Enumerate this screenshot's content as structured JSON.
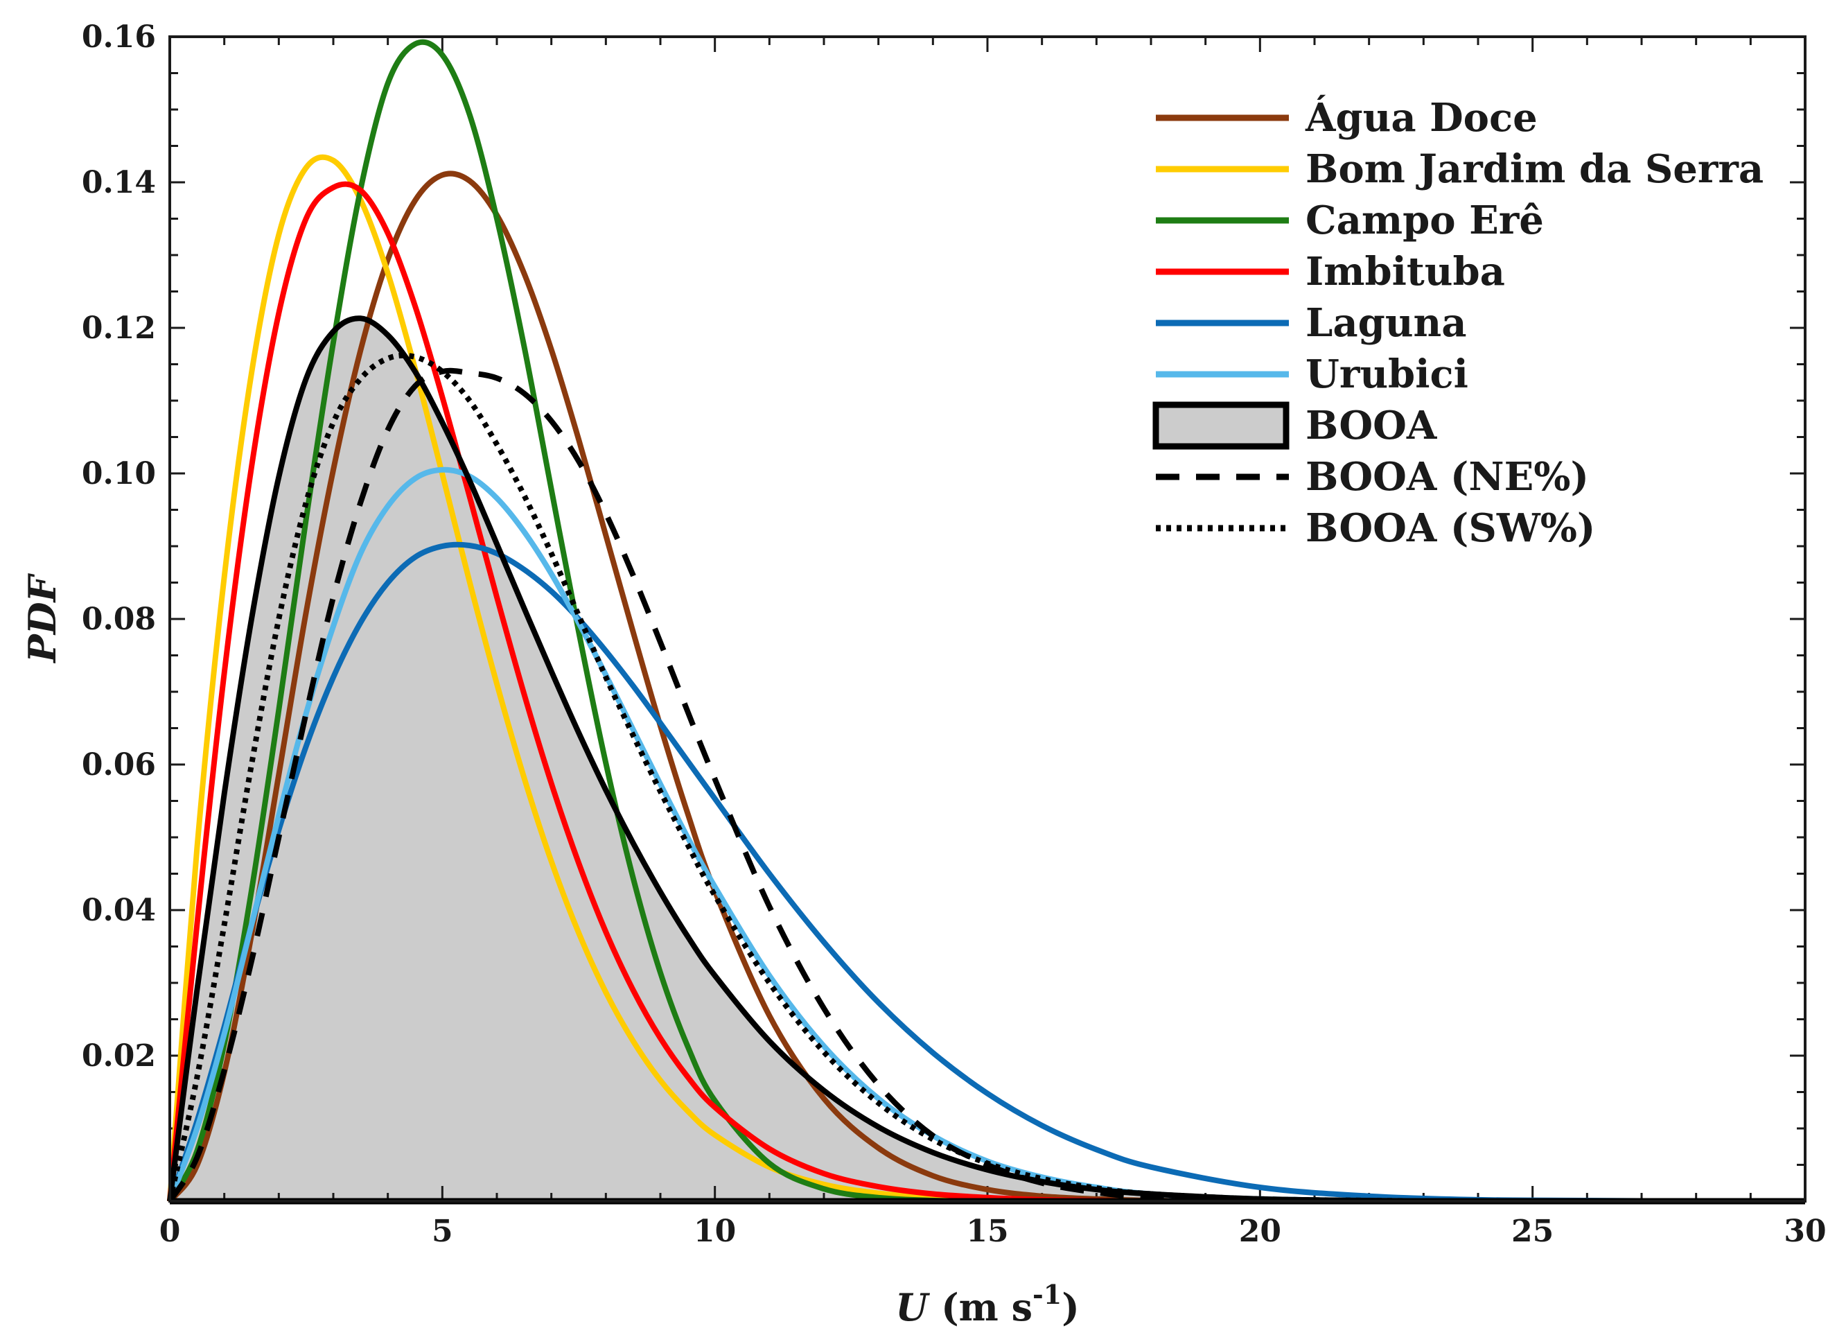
{
  "chart_data": {
    "type": "line",
    "title": "",
    "xlabel": {
      "symbol": "U",
      "unit_prefix": " (m s",
      "unit_exp": "-1",
      "unit_suffix": ")"
    },
    "ylabel": "PDF",
    "xlim": [
      0,
      30
    ],
    "ylim": [
      0,
      0.16
    ],
    "x_ticks": [
      0,
      5,
      10,
      15,
      20,
      25,
      30
    ],
    "x_tick_labels": [
      "0",
      "5",
      "10",
      "15",
      "20",
      "25",
      "30"
    ],
    "y_ticks": [
      0.02,
      0.04,
      0.06,
      0.08,
      0.1,
      0.12,
      0.14,
      0.16
    ],
    "y_tick_labels": [
      "0.02",
      "0.04",
      "0.06",
      "0.08",
      "0.10",
      "0.12",
      "0.14",
      "0.16"
    ],
    "grid": false,
    "legend_position": "top-right",
    "x": [
      0,
      0.5,
      1,
      1.5,
      2,
      2.5,
      3,
      3.5,
      4,
      4.5,
      5,
      5.5,
      6,
      6.5,
      7,
      7.5,
      8,
      8.5,
      9,
      9.5,
      10,
      11,
      12,
      13,
      14,
      15,
      16,
      17,
      18,
      20,
      22,
      24,
      26,
      28,
      30
    ],
    "series": [
      {
        "name": "Água Doce",
        "color": "#8b3a0e",
        "style": "solid",
        "values": [
          0,
          0.0049,
          0.0177,
          0.0366,
          0.0586,
          0.0809,
          0.1005,
          0.1169,
          0.1294,
          0.1375,
          0.141,
          0.1402,
          0.1355,
          0.1275,
          0.117,
          0.1047,
          0.0915,
          0.0782,
          0.0653,
          0.0533,
          0.0426,
          0.0255,
          0.0141,
          0.0073,
          0.0035,
          0.0016,
          0.0007,
          0.0003,
          0.0001,
          0,
          0,
          0,
          0,
          0,
          0
        ]
      },
      {
        "name": "Bom Jardim da Serra",
        "color": "#ffcc00",
        "style": "solid",
        "values": [
          0,
          0.0485,
          0.0858,
          0.1138,
          0.1328,
          0.142,
          0.143,
          0.1376,
          0.1275,
          0.1144,
          0.0999,
          0.0851,
          0.0711,
          0.0582,
          0.0467,
          0.0369,
          0.0287,
          0.022,
          0.0166,
          0.0124,
          0.0091,
          0.0047,
          0.0023,
          0.0011,
          0.0005,
          0.0002,
          0.0001,
          0,
          0,
          0,
          0,
          0,
          0,
          0,
          0
        ]
      },
      {
        "name": "Campo Erê",
        "color": "#1e7d14",
        "style": "solid",
        "values": [
          0,
          0.0069,
          0.0216,
          0.0427,
          0.0675,
          0.0937,
          0.118,
          0.139,
          0.1536,
          0.159,
          0.1575,
          0.1493,
          0.135,
          0.1175,
          0.0978,
          0.0783,
          0.0602,
          0.0444,
          0.0314,
          0.0213,
          0.0138,
          0.0052,
          0.0017,
          0.0005,
          0.0001,
          0,
          0,
          0,
          0,
          0,
          0,
          0,
          0,
          0,
          0
        ]
      },
      {
        "name": "Imbituba",
        "color": "#ff0000",
        "style": "solid",
        "values": [
          0,
          0.038,
          0.0726,
          0.1009,
          0.122,
          0.135,
          0.1393,
          0.1389,
          0.133,
          0.123,
          0.1105,
          0.0968,
          0.083,
          0.0697,
          0.0574,
          0.0465,
          0.037,
          0.029,
          0.0224,
          0.0171,
          0.0129,
          0.0072,
          0.0038,
          0.002,
          0.001,
          0.0005,
          0.0002,
          0.0001,
          0,
          0,
          0,
          0,
          0,
          0,
          0
        ]
      },
      {
        "name": "Laguna",
        "color": "#0c6bb5",
        "style": "solid",
        "values": [
          0,
          0.011,
          0.024,
          0.038,
          0.051,
          0.0625,
          0.072,
          0.0795,
          0.085,
          0.0885,
          0.09,
          0.0901,
          0.089,
          0.0868,
          0.0838,
          0.08,
          0.0756,
          0.0708,
          0.0657,
          0.0605,
          0.0553,
          0.045,
          0.0356,
          0.0273,
          0.0204,
          0.0148,
          0.0104,
          0.0071,
          0.0047,
          0.0019,
          0.0007,
          0.0002,
          0.0001,
          0,
          0
        ]
      },
      {
        "name": "Urubici",
        "color": "#56b8ea",
        "style": "solid",
        "values": [
          0,
          0.01,
          0.023,
          0.038,
          0.053,
          0.067,
          0.079,
          0.089,
          0.0955,
          0.0993,
          0.1005,
          0.0996,
          0.0966,
          0.092,
          0.0862,
          0.0795,
          0.0723,
          0.0648,
          0.0573,
          0.05,
          0.0432,
          0.031,
          0.0213,
          0.0141,
          0.009,
          0.0055,
          0.0033,
          0.0019,
          0.001,
          0.0003,
          0.0001,
          0,
          0,
          0,
          0
        ]
      },
      {
        "name": "BOOA",
        "color": "#000000",
        "style": "filled",
        "fill": "#cccccc",
        "values": [
          0,
          0.029,
          0.056,
          0.08,
          0.0995,
          0.113,
          0.1195,
          0.1213,
          0.119,
          0.114,
          0.107,
          0.099,
          0.0903,
          0.0815,
          0.0728,
          0.0644,
          0.0565,
          0.0492,
          0.0425,
          0.0364,
          0.031,
          0.022,
          0.0152,
          0.0102,
          0.0067,
          0.0043,
          0.0027,
          0.0016,
          0.001,
          0.0003,
          0.0001,
          0,
          0,
          0,
          0
        ]
      },
      {
        "name": "BOOA (NE%)",
        "color": "#000000",
        "style": "dashed",
        "values": [
          0,
          0.006,
          0.018,
          0.033,
          0.05,
          0.067,
          0.083,
          0.096,
          0.106,
          0.112,
          0.114,
          0.1138,
          0.1131,
          0.111,
          0.1072,
          0.1017,
          0.0945,
          0.086,
          0.0768,
          0.0673,
          0.058,
          0.0405,
          0.0265,
          0.016,
          0.009,
          0.005,
          0.0025,
          0.0012,
          0.0005,
          0.0001,
          0,
          0,
          0,
          0,
          0
        ]
      },
      {
        "name": "BOOA (SW%)",
        "color": "#000000",
        "style": "dotted",
        "values": [
          0,
          0.017,
          0.038,
          0.06,
          0.08,
          0.096,
          0.107,
          0.113,
          0.1158,
          0.116,
          0.114,
          0.11,
          0.104,
          0.097,
          0.089,
          0.0805,
          0.072,
          0.064,
          0.0563,
          0.049,
          0.042,
          0.03,
          0.0205,
          0.0135,
          0.0085,
          0.0052,
          0.0031,
          0.0018,
          0.001,
          0.0003,
          0.0001,
          0,
          0,
          0,
          0
        ]
      }
    ]
  }
}
